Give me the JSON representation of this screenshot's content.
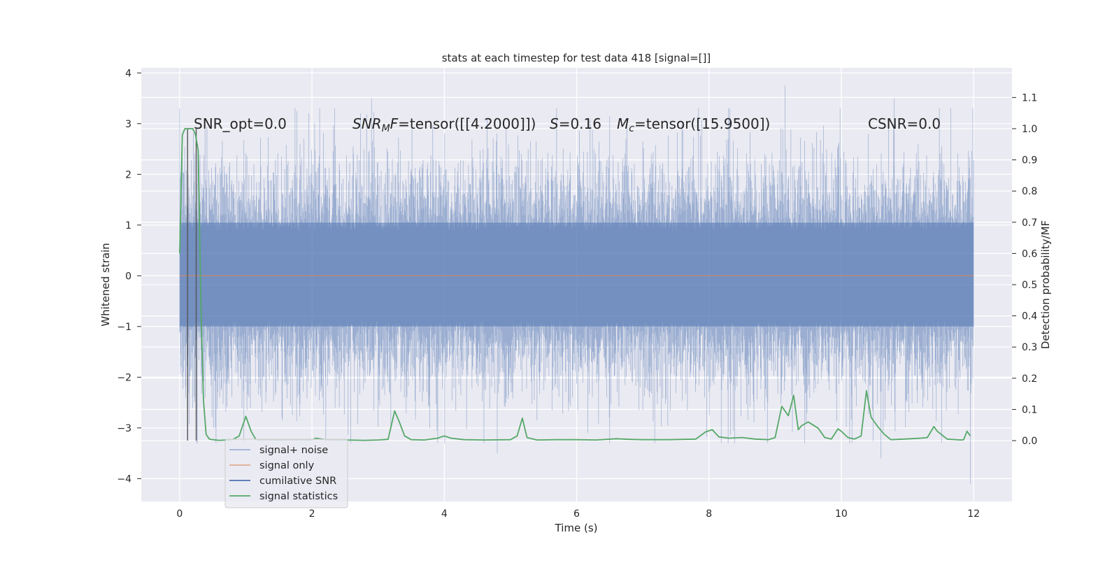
{
  "chart_data": {
    "type": "line",
    "title": "stats at each timestep for test data 418 [signal=[]]",
    "xlabel": "Time (s)",
    "ylabel_left": "Whitened strain",
    "ylabel_right": "Detection probability/MF",
    "xlim": [
      -0.58,
      12.58
    ],
    "ylim_left": [
      -4.45,
      4.1
    ],
    "ylim_right": [
      -0.195,
      1.195
    ],
    "x_ticks": [
      "0",
      "2",
      "4",
      "6",
      "8",
      "10",
      "12"
    ],
    "x_tick_values": [
      0,
      2,
      4,
      6,
      8,
      10,
      12
    ],
    "y_left_ticks": [
      "4",
      "3",
      "2",
      "1",
      "0",
      "−1",
      "−2",
      "−3",
      "−4"
    ],
    "y_left_tick_values": [
      4,
      3,
      2,
      1,
      0,
      -1,
      -2,
      -3,
      -4
    ],
    "y_right_ticks": [
      "1.1",
      "1.0",
      "0.9",
      "0.8",
      "0.7",
      "0.6",
      "0.5",
      "0.4",
      "0.3",
      "0.2",
      "0.1",
      "0.0"
    ],
    "y_right_tick_values": [
      1.1,
      1.0,
      0.9,
      0.8,
      0.7,
      0.6,
      0.5,
      0.4,
      0.3,
      0.2,
      0.1,
      0.0
    ],
    "grid": true,
    "legend_position": "lower-left",
    "annotations": {
      "snr_opt": "SNR_opt=0.0",
      "snr_mf_var": "SNR",
      "snr_mf_sub": "M",
      "snr_mf_var2": "F",
      "snr_mf_value": "=tensor([[4.2000]])",
      "s_var": "S",
      "s_value": "=0.16",
      "mc_var": "M",
      "mc_sub": "c",
      "mc_value": "=tensor([15.9500])",
      "csnr": "CSNR=0.0"
    },
    "series": [
      {
        "name": "signal+ noise",
        "axis": "left",
        "color": "#4c72b0",
        "opacity": 0.5,
        "x_range": [
          0,
          12
        ],
        "core_band": [
          -1.0,
          1.05
        ],
        "typical_extremes": [
          -2.6,
          2.5
        ],
        "peaks": [
          {
            "x": 2.9,
            "y": 3.5
          },
          {
            "x": 9.15,
            "y": 3.75
          },
          {
            "x": 10.8,
            "y": 3.5
          },
          {
            "x": 11.95,
            "y": -4.1
          },
          {
            "x": 4.8,
            "y": -3.5
          },
          {
            "x": 10.6,
            "y": -3.6
          },
          {
            "x": 0.55,
            "y": -3.3
          },
          {
            "x": 1.95,
            "y": 3.2
          }
        ]
      },
      {
        "name": "signal only",
        "axis": "left",
        "color": "#dd8452",
        "x": [
          0,
          12
        ],
        "y": [
          0,
          0
        ]
      },
      {
        "name": "cumilative SNR",
        "axis": "left",
        "color": "#4c72b0",
        "x": [],
        "y": []
      },
      {
        "name": "signal statistics",
        "axis": "right",
        "color": "#55a868",
        "x": [
          0.0,
          0.04,
          0.08,
          0.12,
          0.16,
          0.2,
          0.24,
          0.28,
          0.32,
          0.36,
          0.4,
          0.45,
          0.5,
          0.6,
          0.7,
          0.8,
          0.9,
          1.0,
          1.08,
          1.15,
          1.2,
          1.3,
          1.5,
          1.7,
          2.0,
          2.06,
          2.2,
          2.5,
          2.8,
          3.0,
          3.15,
          3.25,
          3.32,
          3.4,
          3.5,
          3.7,
          3.9,
          4.0,
          4.1,
          4.3,
          4.6,
          5.0,
          5.1,
          5.18,
          5.25,
          5.4,
          5.7,
          6.0,
          6.3,
          6.6,
          6.8,
          7.0,
          7.4,
          7.8,
          7.95,
          8.05,
          8.15,
          8.3,
          8.5,
          8.7,
          8.9,
          9.0,
          9.1,
          9.2,
          9.28,
          9.35,
          9.4,
          9.5,
          9.65,
          9.75,
          9.85,
          9.95,
          10.0,
          10.1,
          10.2,
          10.3,
          10.38,
          10.45,
          10.55,
          10.65,
          10.75,
          10.95,
          11.2,
          11.3,
          11.4,
          11.45,
          11.6,
          11.8,
          11.85,
          11.9,
          11.95
        ],
        "y": [
          0.6,
          0.98,
          1.0,
          1.0,
          1.0,
          1.0,
          0.98,
          0.93,
          0.45,
          0.13,
          0.02,
          0.005,
          0.003,
          0.001,
          0.002,
          0.003,
          0.015,
          0.078,
          0.03,
          0.004,
          0.002,
          0.003,
          0.002,
          0.003,
          0.002,
          0.008,
          0.003,
          0.002,
          0.001,
          0.002,
          0.004,
          0.095,
          0.06,
          0.015,
          0.003,
          0.002,
          0.008,
          0.015,
          0.008,
          0.003,
          0.002,
          0.003,
          0.015,
          0.072,
          0.01,
          0.002,
          0.003,
          0.003,
          0.002,
          0.006,
          0.004,
          0.003,
          0.003,
          0.005,
          0.028,
          0.035,
          0.012,
          0.008,
          0.01,
          0.005,
          0.003,
          0.01,
          0.11,
          0.08,
          0.145,
          0.035,
          0.048,
          0.06,
          0.04,
          0.01,
          0.005,
          0.038,
          0.03,
          0.01,
          0.005,
          0.015,
          0.16,
          0.075,
          0.045,
          0.02,
          0.003,
          0.005,
          0.008,
          0.01,
          0.045,
          0.03,
          0.005,
          0.002,
          0.003,
          0.03,
          0.015
        ]
      }
    ],
    "vertical_lines": [
      {
        "x": 0.12,
        "color": "#555555"
      },
      {
        "x": 0.25,
        "color": "#555555"
      }
    ]
  }
}
